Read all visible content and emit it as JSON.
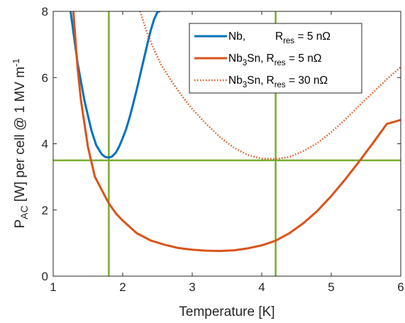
{
  "chart_data": {
    "type": "line",
    "xlabel": "Temperature [K]",
    "ylabel_main": "P",
    "ylabel_sub": "AC",
    "ylabel_rest": " [W] per cell @ 1 MV m",
    "ylabel_sup": "-1",
    "xlim": [
      1,
      6
    ],
    "ylim": [
      0,
      8
    ],
    "x_ticks": [
      1,
      2,
      3,
      4,
      5,
      6
    ],
    "y_ticks": [
      0,
      2,
      4,
      6,
      8
    ],
    "grid": false,
    "legend_position": "top-right",
    "series": [
      {
        "name": "Nb, R_res = 5 nΩ",
        "legend": {
          "label_a": "Nb,",
          "r_main": "R",
          "r_sub": "res",
          "r_value": " = 5 nΩ"
        },
        "color": "#0072BD",
        "style": "solid",
        "x": [
          1.25,
          1.35,
          1.45,
          1.55,
          1.62,
          1.7,
          1.75,
          1.8,
          1.85,
          1.9,
          1.95,
          2.0,
          2.05,
          2.1,
          2.15,
          2.2,
          2.25,
          2.3,
          2.35,
          2.4,
          2.45,
          2.5,
          2.53
        ],
        "y": [
          8.0,
          6.45,
          5.3,
          4.4,
          3.95,
          3.68,
          3.6,
          3.58,
          3.62,
          3.73,
          3.92,
          4.17,
          4.45,
          4.8,
          5.2,
          5.62,
          6.07,
          6.52,
          6.97,
          7.4,
          7.75,
          7.98,
          8.0
        ]
      },
      {
        "name": "Nb3Sn, R_res = 5 nΩ",
        "legend": {
          "label_a": "Nb",
          "a_sub": "3",
          "label_b": "Sn,",
          "r_main": "R",
          "r_sub": "res",
          "r_value": " = 5 nΩ"
        },
        "color": "#D95319",
        "style": "solid",
        "x": [
          1.29,
          1.35,
          1.4,
          1.5,
          1.6,
          1.7,
          1.8,
          1.9,
          2.0,
          2.2,
          2.4,
          2.6,
          2.8,
          3.0,
          3.2,
          3.4,
          3.6,
          3.8,
          4.0,
          4.2,
          4.4,
          4.6,
          4.8,
          5.0,
          5.2,
          5.4,
          5.6,
          5.8,
          6.0
        ],
        "y": [
          8.0,
          6.3,
          5.3,
          3.9,
          3.0,
          2.6,
          2.2,
          1.9,
          1.68,
          1.3,
          1.08,
          0.95,
          0.85,
          0.8,
          0.77,
          0.76,
          0.78,
          0.84,
          0.93,
          1.07,
          1.3,
          1.6,
          1.97,
          2.42,
          2.92,
          3.46,
          4.02,
          4.6,
          4.72
        ]
      },
      {
        "name": "Nb3Sn, R_res = 30 nΩ",
        "legend": {
          "label_a": "Nb",
          "a_sub": "3",
          "label_b": "Sn,",
          "r_main": "R",
          "r_sub": "res",
          "r_value": " = 30 nΩ"
        },
        "color": "#D95319",
        "style": "dotted",
        "x": [
          2.25,
          2.35,
          2.45,
          2.55,
          2.7,
          2.85,
          3.0,
          3.2,
          3.4,
          3.6,
          3.8,
          4.0,
          4.2,
          4.4,
          4.6,
          4.8,
          5.0,
          5.2,
          5.4,
          5.6,
          5.8,
          6.0
        ],
        "y": [
          8.0,
          7.35,
          6.85,
          6.4,
          5.9,
          5.45,
          5.05,
          4.6,
          4.2,
          3.88,
          3.66,
          3.55,
          3.54,
          3.6,
          3.78,
          4.02,
          4.35,
          4.73,
          5.15,
          5.55,
          5.95,
          6.32
        ]
      }
    ],
    "reference_lines": {
      "color": "#77AC30",
      "vertical_x": [
        1.8,
        4.2
      ],
      "horizontal_y": [
        3.5
      ]
    }
  }
}
